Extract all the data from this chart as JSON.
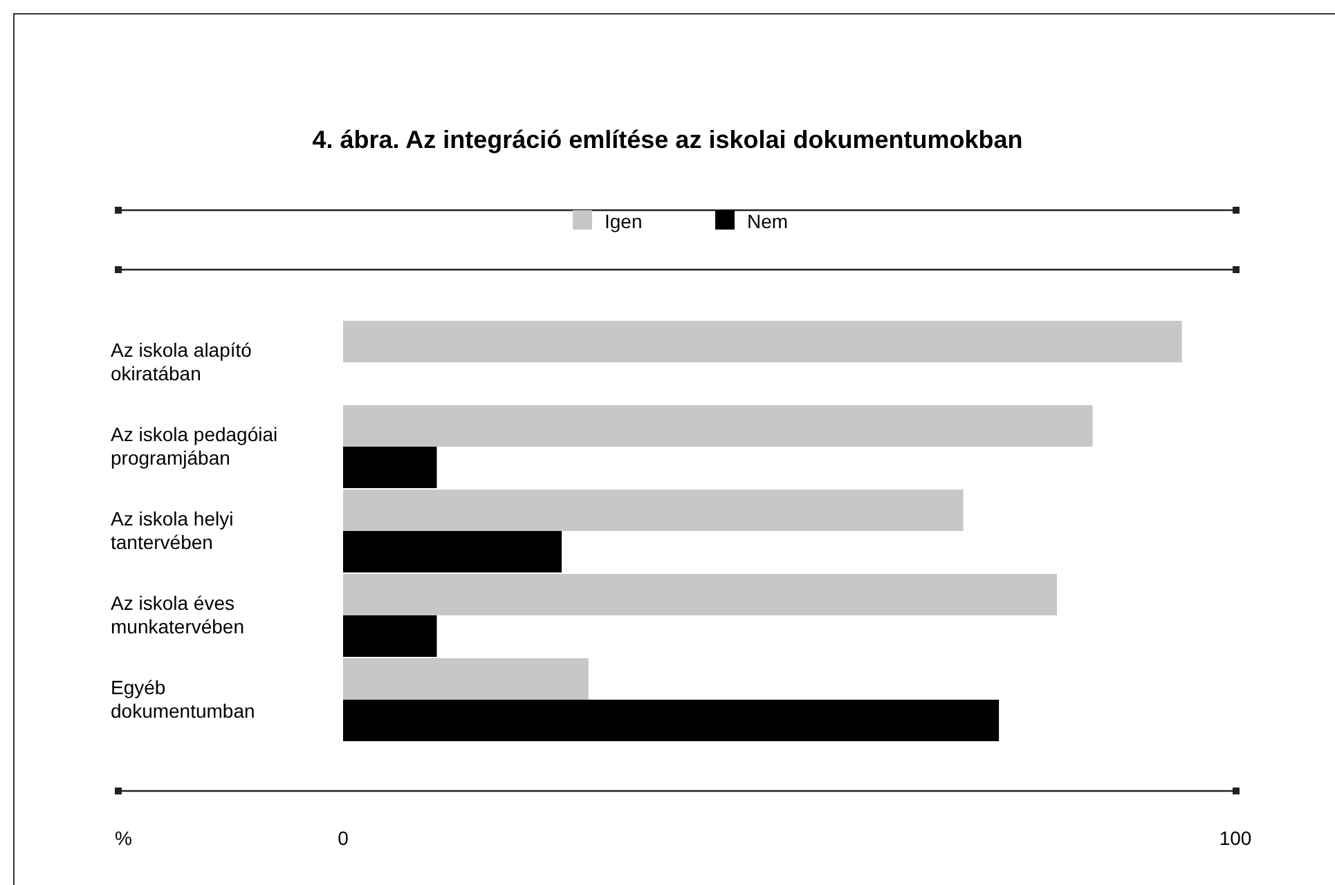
{
  "chart_data": {
    "type": "bar",
    "orientation": "horizontal",
    "title": "4. ábra. Az integráció említése az iskolai dokumentumokban",
    "xlabel": "%",
    "categories": [
      "Az iskola alapító okiratában",
      "Az iskola pedagóiai programjában",
      "Az iskola helyi tantervében",
      "Az iskola éves munkatervében",
      "Egyéb dokumentumban"
    ],
    "series": [
      {
        "name": "Igen",
        "color": "#c6c7c9",
        "values": [
          94,
          84,
          69.5,
          80,
          27.5
        ]
      },
      {
        "name": "Nem",
        "color": "#000000",
        "values": [
          null,
          10.5,
          24.5,
          10.5,
          73.5
        ]
      }
    ],
    "xlim": [
      0,
      100
    ],
    "xticks": [
      0,
      100
    ],
    "legend": "top",
    "grid": false
  }
}
